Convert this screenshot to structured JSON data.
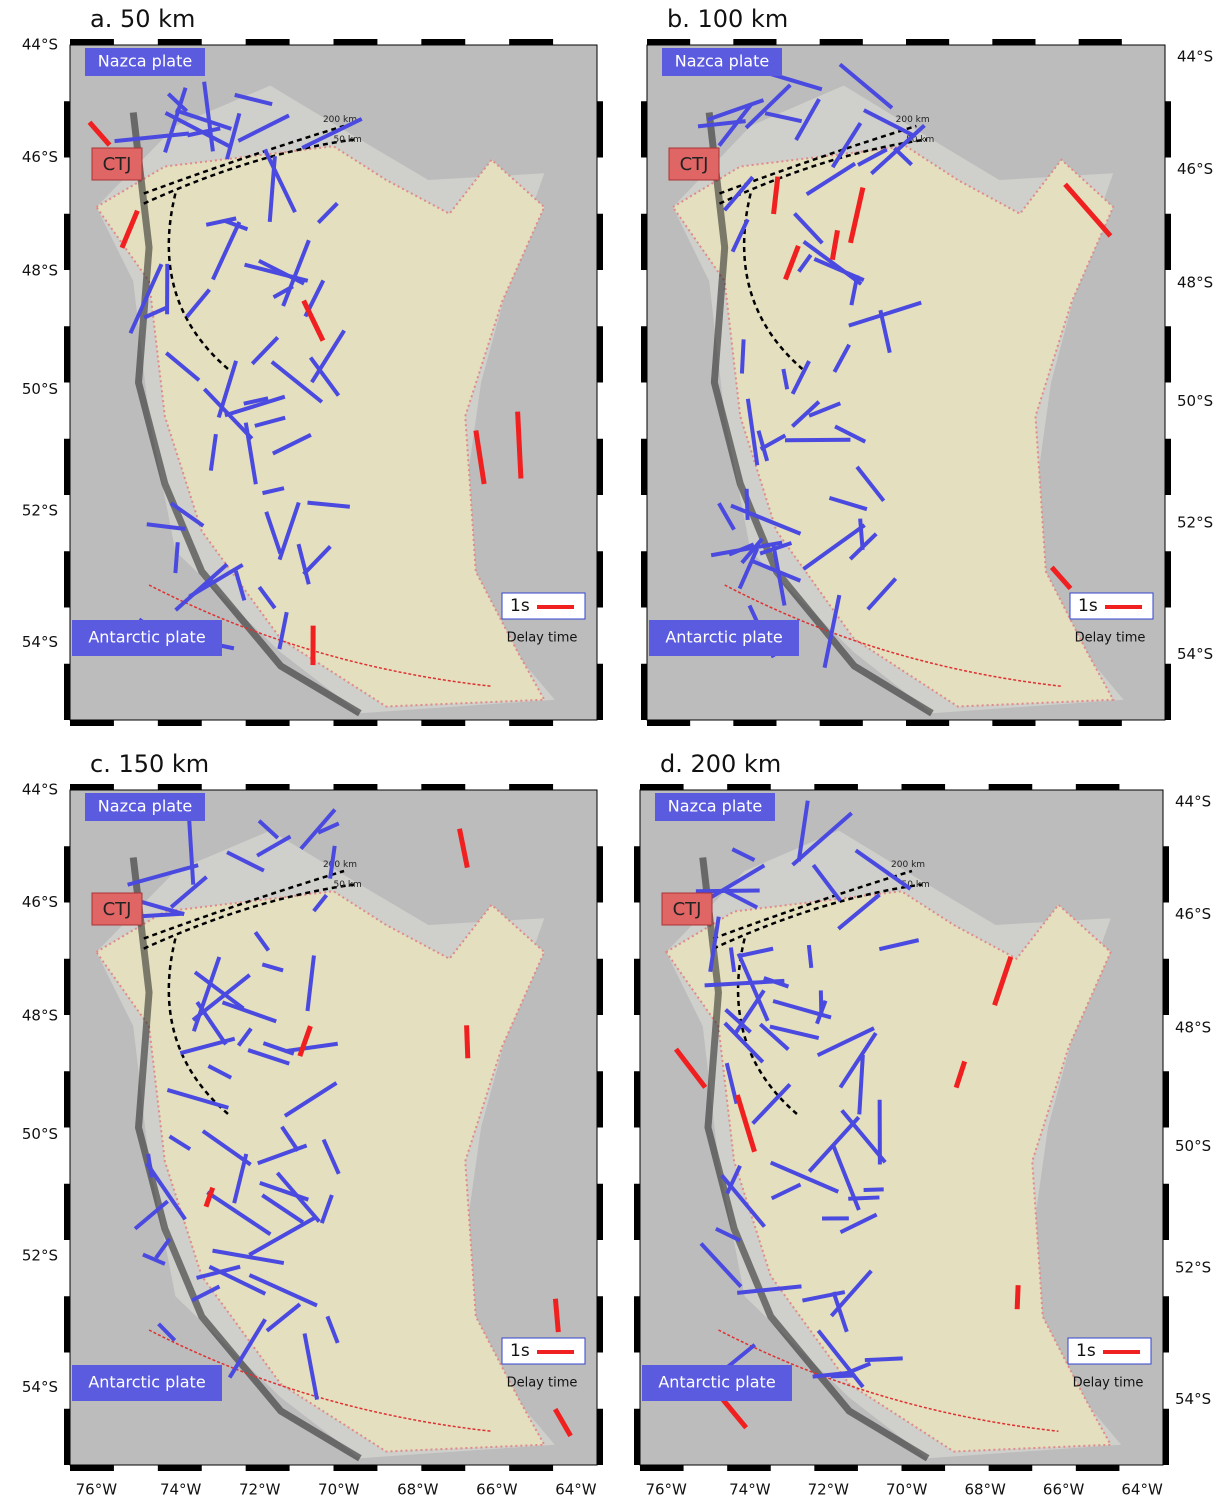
{
  "panels": [
    {
      "title": "a. 50 km"
    },
    {
      "title": "b. 100 km"
    },
    {
      "title": "c. 150 km"
    },
    {
      "title": "d. 200 km"
    }
  ],
  "labels": {
    "nazca": "Nazca plate",
    "ctj": "CTJ",
    "antarctic": "Antarctic plate",
    "scale": "1s",
    "delay": "Delay time",
    "contour_200": "200 km",
    "contour_50": "50 km"
  },
  "lat_labels": [
    "44°S",
    "46°S",
    "48°S",
    "50°S",
    "52°S",
    "54°S"
  ],
  "lon_labels": [
    "76°W",
    "74°W",
    "72°W",
    "70°W",
    "68°W",
    "66°W",
    "64°W"
  ]
}
